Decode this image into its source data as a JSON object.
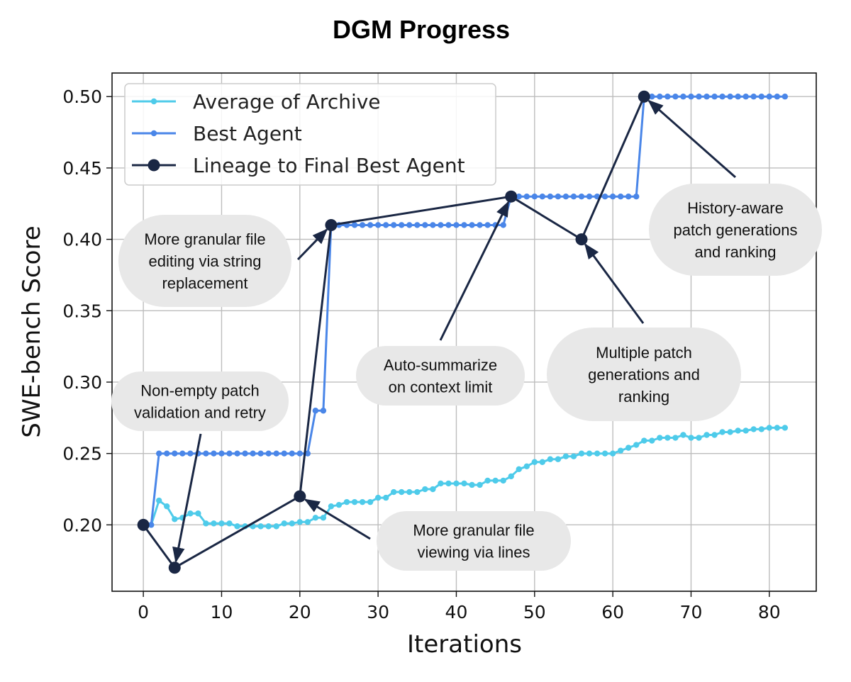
{
  "chart_data": {
    "type": "line",
    "title": "DGM Progress",
    "xlabel": "Iterations",
    "ylabel": "SWE-bench Score",
    "xlim": [
      -4,
      86
    ],
    "ylim": [
      0.1535,
      0.5165
    ],
    "xticks": [
      0,
      10,
      20,
      30,
      40,
      50,
      60,
      70,
      80
    ],
    "yticks": [
      0.2,
      0.25,
      0.3,
      0.35,
      0.4,
      0.45,
      0.5
    ],
    "xtick_labels": [
      "0",
      "10",
      "20",
      "30",
      "40",
      "50",
      "60",
      "70",
      "80"
    ],
    "ytick_labels": [
      "0.20",
      "0.25",
      "0.30",
      "0.35",
      "0.40",
      "0.45",
      "0.50"
    ],
    "grid": true,
    "legend_position": "top-left",
    "series": [
      {
        "name": "Average of Archive",
        "color": "#4ecbea",
        "x": [
          0,
          1,
          2,
          3,
          4,
          5,
          6,
          7,
          8,
          9,
          10,
          11,
          12,
          13,
          14,
          15,
          16,
          17,
          18,
          19,
          20,
          21,
          22,
          23,
          24,
          25,
          26,
          27,
          28,
          29,
          30,
          31,
          32,
          33,
          34,
          35,
          36,
          37,
          38,
          39,
          40,
          41,
          42,
          43,
          44,
          45,
          46,
          47,
          48,
          49,
          50,
          51,
          52,
          53,
          54,
          55,
          56,
          57,
          58,
          59,
          60,
          61,
          62,
          63,
          64,
          65,
          66,
          67,
          68,
          69,
          70,
          71,
          72,
          73,
          74,
          75,
          76,
          77,
          78,
          79,
          80,
          81,
          82
        ],
        "values": [
          0.2,
          0.2,
          0.217,
          0.213,
          0.204,
          0.205,
          0.208,
          0.208,
          0.201,
          0.201,
          0.201,
          0.201,
          0.199,
          0.199,
          0.199,
          0.199,
          0.199,
          0.199,
          0.201,
          0.201,
          0.202,
          0.202,
          0.205,
          0.205,
          0.213,
          0.214,
          0.216,
          0.216,
          0.216,
          0.216,
          0.219,
          0.219,
          0.223,
          0.223,
          0.223,
          0.223,
          0.225,
          0.225,
          0.229,
          0.229,
          0.229,
          0.229,
          0.228,
          0.228,
          0.231,
          0.231,
          0.231,
          0.234,
          0.239,
          0.241,
          0.244,
          0.244,
          0.246,
          0.246,
          0.248,
          0.248,
          0.25,
          0.25,
          0.25,
          0.25,
          0.25,
          0.252,
          0.254,
          0.256,
          0.259,
          0.259,
          0.261,
          0.261,
          0.261,
          0.263,
          0.261,
          0.261,
          0.263,
          0.263,
          0.265,
          0.265,
          0.266,
          0.266,
          0.267,
          0.267,
          0.268,
          0.268,
          0.268
        ]
      },
      {
        "name": "Best Agent",
        "color": "#4a86e8",
        "x": [
          0,
          1,
          2,
          3,
          4,
          5,
          6,
          7,
          8,
          9,
          10,
          11,
          12,
          13,
          14,
          15,
          16,
          17,
          18,
          19,
          20,
          21,
          22,
          23,
          24,
          25,
          26,
          27,
          28,
          29,
          30,
          31,
          32,
          33,
          34,
          35,
          36,
          37,
          38,
          39,
          40,
          41,
          42,
          43,
          44,
          45,
          46,
          47,
          48,
          49,
          50,
          51,
          52,
          53,
          54,
          55,
          56,
          57,
          58,
          59,
          60,
          61,
          62,
          63,
          64,
          65,
          66,
          67,
          68,
          69,
          70,
          71,
          72,
          73,
          74,
          75,
          76,
          77,
          78,
          79,
          80,
          81,
          82
        ],
        "values": [
          0.2,
          0.2,
          0.25,
          0.25,
          0.25,
          0.25,
          0.25,
          0.25,
          0.25,
          0.25,
          0.25,
          0.25,
          0.25,
          0.25,
          0.25,
          0.25,
          0.25,
          0.25,
          0.25,
          0.25,
          0.25,
          0.25,
          0.28,
          0.28,
          0.41,
          0.41,
          0.41,
          0.41,
          0.41,
          0.41,
          0.41,
          0.41,
          0.41,
          0.41,
          0.41,
          0.41,
          0.41,
          0.41,
          0.41,
          0.41,
          0.41,
          0.41,
          0.41,
          0.41,
          0.41,
          0.41,
          0.41,
          0.43,
          0.43,
          0.43,
          0.43,
          0.43,
          0.43,
          0.43,
          0.43,
          0.43,
          0.43,
          0.43,
          0.43,
          0.43,
          0.43,
          0.43,
          0.43,
          0.43,
          0.5,
          0.5,
          0.5,
          0.5,
          0.5,
          0.5,
          0.5,
          0.5,
          0.5,
          0.5,
          0.5,
          0.5,
          0.5,
          0.5,
          0.5,
          0.5,
          0.5,
          0.5,
          0.5
        ]
      },
      {
        "name": "Lineage to Final Best Agent",
        "color": "#1a2744",
        "x": [
          0,
          4,
          20,
          24,
          47,
          56,
          64
        ],
        "values": [
          0.2,
          0.17,
          0.22,
          0.41,
          0.43,
          0.4,
          0.5
        ]
      }
    ],
    "annotations": [
      {
        "lines": [
          "Non-empty patch",
          "validation and retry"
        ],
        "target": [
          4,
          0.17
        ]
      },
      {
        "lines": [
          "More granular file",
          "viewing via lines"
        ],
        "target": [
          20,
          0.22
        ]
      },
      {
        "lines": [
          "More granular file",
          "editing via string",
          "replacement"
        ],
        "target": [
          24,
          0.41
        ]
      },
      {
        "lines": [
          "Auto-summarize",
          "on context limit"
        ],
        "target": [
          47,
          0.43
        ]
      },
      {
        "lines": [
          "Multiple patch",
          "generations and",
          "ranking"
        ],
        "target": [
          56,
          0.4
        ]
      },
      {
        "lines": [
          "History-aware",
          "patch generations",
          "and ranking"
        ],
        "target": [
          64,
          0.5
        ]
      }
    ]
  }
}
